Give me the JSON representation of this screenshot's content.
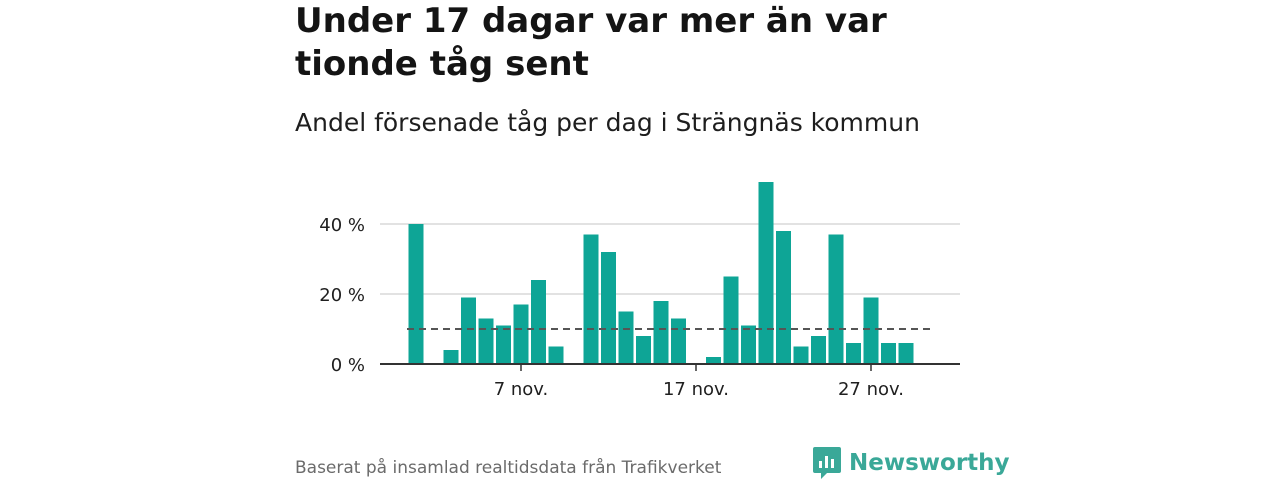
{
  "headline": "Under 17 dagar var mer än var tionde tåg sent",
  "subtitle": "Andel försenade tåg per dag i Strängnäs kommun",
  "footer": "Baserat på insamlad realtidsdata från Trafikverket",
  "brand": {
    "name": "Newsworthy",
    "color": "#3aa898"
  },
  "colors": {
    "bar": "#0ea596",
    "grid": "#d9d9d9",
    "axis": "#333333",
    "threshold": "#555555"
  },
  "chart_data": {
    "type": "bar",
    "x_start_day": 1,
    "x_tick_days": [
      7,
      17,
      27
    ],
    "x_tick_labels": [
      "7 nov.",
      "17 nov.",
      "27 nov."
    ],
    "y_ticks": [
      0,
      20,
      40
    ],
    "y_tick_labels": [
      "0 %",
      "20 %",
      "40 %"
    ],
    "ylim": [
      0,
      54
    ],
    "values": [
      40,
      0,
      4,
      19,
      13,
      11,
      17,
      24,
      5,
      0,
      37,
      32,
      15,
      8,
      18,
      13,
      0,
      2,
      25,
      11,
      52,
      38,
      5,
      8,
      37,
      6,
      19,
      6,
      6
    ],
    "threshold": 10,
    "grid": true
  }
}
